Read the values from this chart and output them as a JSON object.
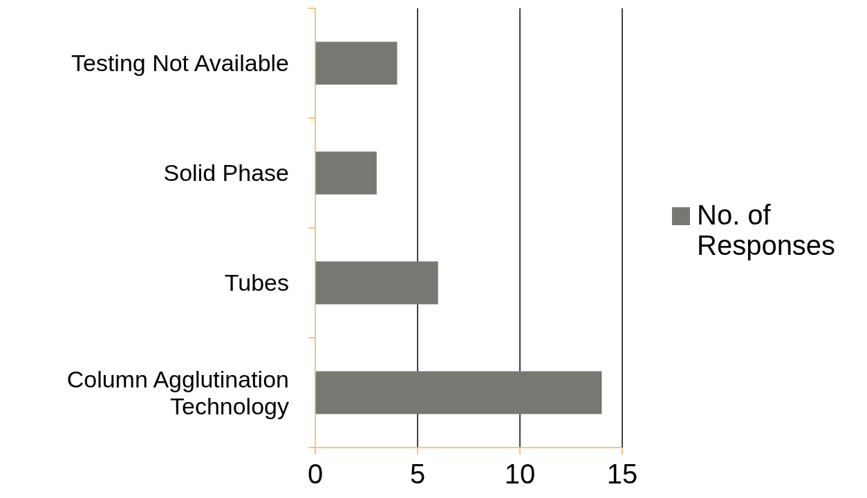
{
  "chart_data": {
    "type": "bar",
    "orientation": "horizontal",
    "categories": [
      "Testing Not Available",
      "Solid Phase",
      "Tubes",
      "Column Agglutination Technology"
    ],
    "series": [
      {
        "name": "No. of Responses",
        "color": "#787873",
        "values": [
          4,
          3,
          6,
          14
        ]
      }
    ],
    "xlim": [
      0,
      15
    ],
    "xticks": [
      0,
      5,
      10,
      15
    ],
    "grid": "x",
    "legend": "right"
  }
}
